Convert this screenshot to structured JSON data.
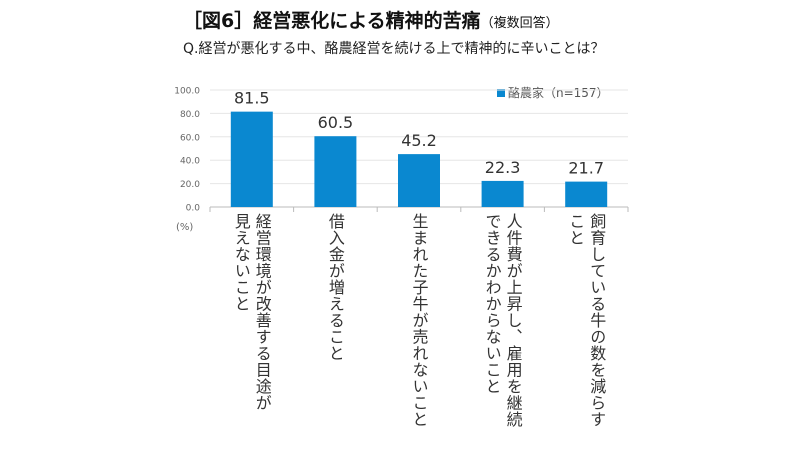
{
  "chart_data": {
    "type": "bar",
    "title": "［図6］経営悪化による精神的苦痛",
    "title_note": "（複数回答）",
    "subtitle": "Q.経営が悪化する中、酪農経営を続ける上で精神的に辛いことは？",
    "categories": [
      "経営環境が改善する目途が\n見えないこと",
      "借入金が増えること",
      "生まれた子牛が売れないこと",
      "人件費が上昇し、雇用を継続\nできるかわからないこと",
      "飼育している牛の数を減らす\nこと"
    ],
    "series": [
      {
        "name": "酪農家（n=157）",
        "values": [
          81.5,
          60.5,
          45.2,
          22.3,
          21.7
        ],
        "color": "#0a88d0"
      }
    ],
    "value_labels": [
      "81.5",
      "60.5",
      "45.2",
      "22.3",
      "21.7"
    ],
    "yticks": [
      "0.0",
      "20.0",
      "40.0",
      "60.0",
      "80.0",
      "100.0"
    ],
    "ylim": [
      0,
      100
    ],
    "ylabel": "(%)",
    "legend_position": "top-right"
  }
}
